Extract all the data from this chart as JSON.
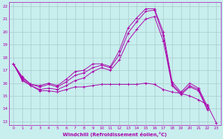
{
  "xlabel": "Windchill (Refroidissement éolien,°C)",
  "xlim": [
    -0.5,
    23.5
  ],
  "ylim": [
    12.7,
    22.3
  ],
  "yticks": [
    13,
    14,
    15,
    16,
    17,
    18,
    19,
    20,
    21,
    22
  ],
  "xticks": [
    0,
    1,
    2,
    3,
    4,
    5,
    6,
    7,
    8,
    9,
    10,
    11,
    12,
    13,
    14,
    15,
    16,
    17,
    18,
    19,
    20,
    21,
    22,
    23
  ],
  "background_color": "#c8eeee",
  "grid_color": "#a0c0c0",
  "line_color": "#aa00aa",
  "lines": [
    [
      17.5,
      16.5,
      15.9,
      15.8,
      16.0,
      15.8,
      16.3,
      16.9,
      17.0,
      17.5,
      17.5,
      17.3,
      18.5,
      20.3,
      21.1,
      21.8,
      21.8,
      20.0,
      16.1,
      15.3,
      16.0,
      15.6,
      14.2,
      null
    ],
    [
      17.5,
      16.4,
      15.9,
      15.7,
      15.9,
      15.7,
      16.1,
      16.6,
      16.8,
      17.2,
      17.4,
      17.2,
      18.2,
      19.9,
      20.8,
      21.6,
      21.7,
      19.7,
      15.9,
      15.2,
      15.8,
      15.5,
      14.0,
      null
    ],
    [
      17.5,
      16.3,
      15.8,
      15.5,
      15.6,
      15.5,
      15.8,
      16.2,
      16.4,
      16.9,
      17.2,
      17.0,
      17.8,
      19.3,
      20.2,
      21.0,
      21.2,
      19.3,
      15.8,
      15.1,
      15.7,
      15.4,
      13.9,
      null
    ],
    [
      17.5,
      16.2,
      15.8,
      15.4,
      15.4,
      15.3,
      15.5,
      15.7,
      15.7,
      15.8,
      15.9,
      15.9,
      15.9,
      15.9,
      15.9,
      16.0,
      15.9,
      15.5,
      15.3,
      15.2,
      15.0,
      14.7,
      14.3,
      12.9
    ]
  ]
}
